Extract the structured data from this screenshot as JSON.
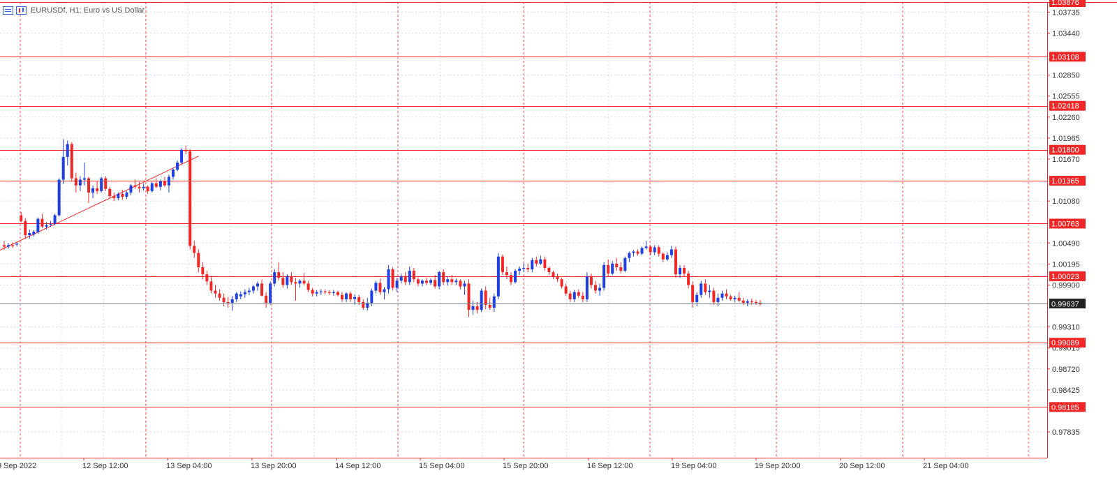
{
  "header": {
    "title": "EURUSDf, H1:  Euro vs US Dollar"
  },
  "colors": {
    "bull": "#1f3fe0",
    "bear": "#f02727",
    "level": "#f02727",
    "grid": "#d8dbe3",
    "current": "#222222",
    "axis": "#f02727"
  },
  "icons": [
    "list-icon",
    "chart-properties-icon"
  ],
  "chart_data": {
    "type": "candlestick",
    "symbol": "EURUSDf",
    "timeframe": "H1",
    "ylim": [
      0.976,
      1.03876
    ],
    "price_ticks": [
      "1.03735",
      "1.03440",
      "1.02850",
      "1.02555",
      "1.02260",
      "1.01965",
      "1.01670",
      "1.01080",
      "1.00490",
      "1.00195",
      "0.99900",
      "0.99310",
      "0.99015",
      "0.98720",
      "0.98425",
      "0.97835"
    ],
    "time_labels": [
      "9 Sep 2022",
      "12 Sep 12:00",
      "13 Sep 04:00",
      "13 Sep 20:00",
      "14 Sep 12:00",
      "15 Sep 04:00",
      "15 Sep 20:00",
      "16 Sep 12:00",
      "19 Sep 04:00",
      "19 Sep 20:00",
      "20 Sep 12:00",
      "21 Sep 04:00"
    ],
    "levels": [
      "1.03876",
      "1.03108",
      "1.02418",
      "1.01800",
      "1.01365",
      "1.00763",
      "1.00023",
      "0.99089",
      "0.98185"
    ],
    "current_price": "0.99637",
    "trendline": {
      "from": {
        "index": -1,
        "price": 1.0039
      },
      "to": {
        "index": 46,
        "price": 1.0171
      }
    },
    "candles": [
      [
        1.0046,
        1.0052,
        1.0039,
        1.0044
      ],
      [
        1.0044,
        1.0049,
        1.0041,
        1.0046
      ],
      [
        1.0046,
        1.005,
        1.0042,
        1.0045
      ],
      [
        1.0047,
        1.005,
        1.0044,
        1.0048
      ],
      [
        1.0088,
        1.0093,
        1.0078,
        1.008
      ],
      [
        1.008,
        1.0084,
        1.0055,
        1.006
      ],
      [
        1.006,
        1.0068,
        1.0055,
        1.0063
      ],
      [
        1.0061,
        1.0067,
        1.0058,
        1.0065
      ],
      [
        1.0064,
        1.0085,
        1.0062,
        1.0083
      ],
      [
        1.0083,
        1.009,
        1.007,
        1.0072
      ],
      [
        1.0072,
        1.0078,
        1.0068,
        1.0074
      ],
      [
        1.0075,
        1.008,
        1.0072,
        1.0076
      ],
      [
        1.0076,
        1.009,
        1.0074,
        1.0088
      ],
      [
        1.0088,
        1.014,
        1.0086,
        1.0138
      ],
      [
        1.0138,
        1.0195,
        1.0132,
        1.017
      ],
      [
        1.017,
        1.0193,
        1.0158,
        1.0188
      ],
      [
        1.0188,
        1.0191,
        1.0135,
        1.014
      ],
      [
        1.014,
        1.0148,
        1.012,
        1.013
      ],
      [
        1.013,
        1.0143,
        1.0122,
        1.0138
      ],
      [
        1.0138,
        1.0162,
        1.013,
        1.014
      ],
      [
        1.014,
        1.0142,
        1.0105,
        1.012
      ],
      [
        1.012,
        1.013,
        1.0112,
        1.0126
      ],
      [
        1.0126,
        1.0136,
        1.0118,
        1.0122
      ],
      [
        1.0122,
        1.0142,
        1.012,
        1.014
      ],
      [
        1.014,
        1.0143,
        1.0122,
        1.0125
      ],
      [
        1.0125,
        1.0128,
        1.0112,
        1.0115
      ],
      [
        1.0115,
        1.012,
        1.0108,
        1.0112
      ],
      [
        1.0112,
        1.012,
        1.0109,
        1.0118
      ],
      [
        1.0118,
        1.0124,
        1.011,
        1.0114
      ],
      [
        1.0114,
        1.0122,
        1.0111,
        1.012
      ],
      [
        1.012,
        1.0132,
        1.0116,
        1.013
      ],
      [
        1.013,
        1.0138,
        1.0125,
        1.0128
      ],
      [
        1.0128,
        1.0135,
        1.012,
        1.0126
      ],
      [
        1.0126,
        1.0133,
        1.0123,
        1.0128
      ],
      [
        1.0128,
        1.013,
        1.0118,
        1.0122
      ],
      [
        1.0122,
        1.0135,
        1.012,
        1.0133
      ],
      [
        1.0133,
        1.014,
        1.0126,
        1.0128
      ],
      [
        1.0128,
        1.0138,
        1.0123,
        1.0136
      ],
      [
        1.0136,
        1.0142,
        1.0128,
        1.013
      ],
      [
        1.013,
        1.0145,
        1.012,
        1.0142
      ],
      [
        1.0142,
        1.0155,
        1.0138,
        1.0152
      ],
      [
        1.0152,
        1.0165,
        1.015,
        1.0162
      ],
      [
        1.0162,
        1.0182,
        1.016,
        1.018
      ],
      [
        1.018,
        1.0186,
        1.0174,
        1.0178
      ],
      [
        1.0178,
        1.0181,
        1.004,
        1.0045
      ],
      [
        1.0045,
        1.0052,
        1.0028,
        1.0035
      ],
      [
        1.0035,
        1.004,
        1.0008,
        1.0015
      ],
      [
        1.0015,
        1.0022,
        0.9998,
        1.0005
      ],
      [
        1.0005,
        1.001,
        0.999,
        0.9995
      ],
      [
        0.9995,
        1.0002,
        0.9978,
        0.9982
      ],
      [
        0.9982,
        0.999,
        0.9972,
        0.9978
      ],
      [
        0.9978,
        0.9984,
        0.9968,
        0.9972
      ],
      [
        0.9972,
        0.9978,
        0.996,
        0.9966
      ],
      [
        0.9966,
        0.9973,
        0.9958,
        0.9965
      ],
      [
        0.9965,
        0.9975,
        0.9954,
        0.997
      ],
      [
        0.997,
        0.998,
        0.9966,
        0.9978
      ],
      [
        0.9974,
        0.9981,
        0.997,
        0.9977
      ],
      [
        0.9977,
        0.9984,
        0.9972,
        0.998
      ],
      [
        0.998,
        0.9986,
        0.9976,
        0.9982
      ],
      [
        0.9982,
        0.999,
        0.9978,
        0.9988
      ],
      [
        0.9988,
        0.9995,
        0.9982,
        0.9992
      ],
      [
        0.9992,
        0.9998,
        0.9974,
        0.9975
      ],
      [
        0.9975,
        0.998,
        0.9958,
        0.9965
      ],
      [
        0.9965,
        0.9995,
        0.9962,
        0.9992
      ],
      [
        0.9992,
        1.0012,
        0.9988,
        1.0008
      ],
      [
        1.0008,
        1.0022,
        0.9996,
        1.0
      ],
      [
        1.0,
        1.0008,
        0.9986,
        0.999
      ],
      [
        0.999,
        1.0005,
        0.9985,
        1.0002
      ],
      [
        1.0002,
        1.0008,
        0.999,
        0.9994
      ],
      [
        0.9994,
        1.0,
        0.9968,
        0.9992
      ],
      [
        0.9992,
        0.9998,
        0.9986,
        0.9996
      ],
      [
        0.9996,
        1.0007,
        0.999,
        0.9992
      ],
      [
        0.9992,
        0.9996,
        0.998,
        0.9983
      ],
      [
        0.9983,
        0.9986,
        0.9974,
        0.9978
      ],
      [
        0.9978,
        0.9983,
        0.9974,
        0.998
      ],
      [
        0.998,
        0.9984,
        0.9976,
        0.9981
      ],
      [
        0.9981,
        0.9984,
        0.9977,
        0.998
      ],
      [
        0.998,
        0.9983,
        0.9976,
        0.9979
      ],
      [
        0.9979,
        0.9983,
        0.9975,
        0.998
      ],
      [
        0.998,
        0.9982,
        0.9974,
        0.9976
      ],
      [
        0.9976,
        0.998,
        0.9966,
        0.997
      ],
      [
        0.997,
        0.998,
        0.9966,
        0.9978
      ],
      [
        0.9978,
        0.9981,
        0.9966,
        0.997
      ],
      [
        0.997,
        0.9977,
        0.9962,
        0.9973
      ],
      [
        0.9973,
        0.9976,
        0.9962,
        0.9966
      ],
      [
        0.9966,
        0.997,
        0.9955,
        0.9958
      ],
      [
        0.9958,
        0.9972,
        0.9954,
        0.9965
      ],
      [
        0.9965,
        0.9985,
        0.996,
        0.9982
      ],
      [
        0.9982,
        0.9996,
        0.9978,
        0.9993
      ],
      [
        0.9993,
        0.9999,
        0.9976,
        0.998
      ],
      [
        0.998,
        0.9987,
        0.997,
        0.9984
      ],
      [
        0.9984,
        1.0018,
        0.9978,
        1.0012
      ],
      [
        1.0012,
        1.0015,
        0.9982,
        0.9986
      ],
      [
        0.9986,
        1.0,
        0.998,
        0.9996
      ],
      [
        0.9996,
        1.0006,
        0.9992,
        1.0002
      ],
      [
        1.0002,
        1.0008,
        0.999,
        0.9994
      ],
      [
        0.9994,
        1.0016,
        0.999,
        1.001
      ],
      [
        1.001,
        1.0014,
        0.9994,
        0.9998
      ],
      [
        0.9998,
        1.0001,
        0.9988,
        0.9992
      ],
      [
        0.9992,
        0.9998,
        0.9988,
        0.9996
      ],
      [
        0.9996,
        1.0,
        0.999,
        0.9993
      ],
      [
        0.9993,
        0.9999,
        0.999,
        0.9997
      ],
      [
        0.9997,
        1.0004,
        0.9985,
        0.9988
      ],
      [
        0.9988,
        1.001,
        0.9984,
        1.0008
      ],
      [
        1.0008,
        1.0012,
        0.999,
        0.9994
      ],
      [
        0.9994,
        1.0002,
        0.9989,
        0.9998
      ],
      [
        0.9998,
        1.0004,
        0.999,
        0.9994
      ],
      [
        0.9994,
        0.9999,
        0.999,
        0.9996
      ],
      [
        0.9996,
        0.9998,
        0.9984,
        0.9988
      ],
      [
        0.9988,
        0.9996,
        0.9976,
        0.9992
      ],
      [
        0.9992,
        0.9998,
        0.9945,
        0.9955
      ],
      [
        0.9955,
        0.9968,
        0.9948,
        0.996
      ],
      [
        0.996,
        0.9966,
        0.995,
        0.9955
      ],
      [
        0.9955,
        0.9985,
        0.9952,
        0.9982
      ],
      [
        0.9982,
        0.9988,
        0.9956,
        0.9962
      ],
      [
        0.9962,
        0.9972,
        0.9955,
        0.9958
      ],
      [
        0.9958,
        0.9978,
        0.9952,
        0.9974
      ],
      [
        0.9974,
        1.0035,
        0.997,
        1.003
      ],
      [
        1.003,
        1.0033,
        1.0004,
        1.0008
      ],
      [
        1.0008,
        1.0016,
        0.9998,
        1.0004
      ],
      [
        1.0004,
        1.0008,
        0.999,
        0.9994
      ],
      [
        0.9994,
        1.0012,
        0.9992,
        1.001
      ],
      [
        1.001,
        1.0016,
        1.0004,
        1.0013
      ],
      [
        1.0013,
        1.002,
        1.0008,
        1.0014
      ],
      [
        1.0014,
        1.002,
        1.0008,
        1.0012
      ],
      [
        1.0012,
        1.0028,
        1.0008,
        1.0025
      ],
      [
        1.0025,
        1.003,
        1.0016,
        1.002
      ],
      [
        1.002,
        1.0031,
        1.0018,
        1.0026
      ],
      [
        1.0026,
        1.003,
        1.001,
        1.0014
      ],
      [
        1.0014,
        1.0016,
        1.0004,
        1.0008
      ],
      [
        1.0008,
        1.001,
        0.9998,
        1.0002
      ],
      [
        1.0002,
        1.0006,
        0.9994,
        0.9998
      ],
      [
        0.9998,
        1.0,
        0.9985,
        0.9988
      ],
      [
        0.9988,
        0.9992,
        0.9975,
        0.9978
      ],
      [
        0.9978,
        0.9982,
        0.9966,
        0.997
      ],
      [
        0.997,
        0.9983,
        0.9966,
        0.998
      ],
      [
        0.998,
        0.9984,
        0.9972,
        0.9975
      ],
      [
        0.9975,
        0.998,
        0.9966,
        0.997
      ],
      [
        0.997,
        1.0008,
        0.9966,
        1.0002
      ],
      [
        1.0002,
        1.0006,
        0.9985,
        0.999
      ],
      [
        0.999,
        0.9996,
        0.9978,
        0.9982
      ],
      [
        0.9982,
        0.9992,
        0.9975,
        0.9986
      ],
      [
        0.9986,
        1.0022,
        0.9982,
        1.0018
      ],
      [
        1.0018,
        1.0026,
        1.0002,
        1.0006
      ],
      [
        1.0006,
        1.0024,
        1.0004,
        1.002
      ],
      [
        1.002,
        1.0028,
        1.001,
        1.0015
      ],
      [
        1.0015,
        1.0022,
        1.0006,
        1.001
      ],
      [
        1.001,
        1.003,
        1.0008,
        1.0028
      ],
      [
        1.0028,
        1.0037,
        1.0022,
        1.0035
      ],
      [
        1.0035,
        1.0039,
        1.003,
        1.0037
      ],
      [
        1.0037,
        1.004,
        1.0031,
        1.0034
      ],
      [
        1.0034,
        1.0044,
        1.0032,
        1.0042
      ],
      [
        1.0042,
        1.0052,
        1.004,
        1.0044
      ],
      [
        1.0044,
        1.0046,
        1.0032,
        1.0036
      ],
      [
        1.0036,
        1.0046,
        1.0032,
        1.0043
      ],
      [
        1.0043,
        1.0046,
        1.003,
        1.0034
      ],
      [
        1.0034,
        1.0036,
        1.0022,
        1.0026
      ],
      [
        1.0026,
        1.0036,
        1.0024,
        1.0032
      ],
      [
        1.0032,
        1.0045,
        1.0028,
        1.004
      ],
      [
        1.004,
        1.0044,
        1.0,
        1.0005
      ],
      [
        1.0005,
        1.0018,
        1.0,
        1.0014
      ],
      [
        1.0014,
        1.0018,
        1.0002,
        1.0006
      ],
      [
        1.0006,
        1.001,
        0.9985,
        0.999
      ],
      [
        0.999,
        0.9995,
        0.9958,
        0.9966
      ],
      [
        0.9966,
        0.998,
        0.996,
        0.9976
      ],
      [
        0.9976,
        0.9996,
        0.9972,
        0.9992
      ],
      [
        0.9992,
        0.9998,
        0.9976,
        0.998
      ],
      [
        0.998,
        0.999,
        0.9972,
        0.9982
      ],
      [
        0.9982,
        0.9986,
        0.9962,
        0.9966
      ],
      [
        0.9966,
        0.9978,
        0.996,
        0.9972
      ],
      [
        0.9972,
        0.9982,
        0.9968,
        0.9978
      ],
      [
        0.9978,
        0.9984,
        0.997,
        0.9974
      ],
      [
        0.9974,
        0.9976,
        0.9968,
        0.997
      ],
      [
        0.997,
        0.9975,
        0.9966,
        0.9972
      ],
      [
        0.9972,
        0.998,
        0.9966,
        0.9968
      ],
      [
        0.9968,
        0.9972,
        0.9962,
        0.9965
      ],
      [
        0.9965,
        0.997,
        0.996,
        0.9967
      ],
      [
        0.9967,
        0.9971,
        0.9962,
        0.9966
      ],
      [
        0.9966,
        0.9969,
        0.9962,
        0.9965
      ],
      [
        0.9965,
        0.9969,
        0.9961,
        0.9963
      ]
    ]
  }
}
